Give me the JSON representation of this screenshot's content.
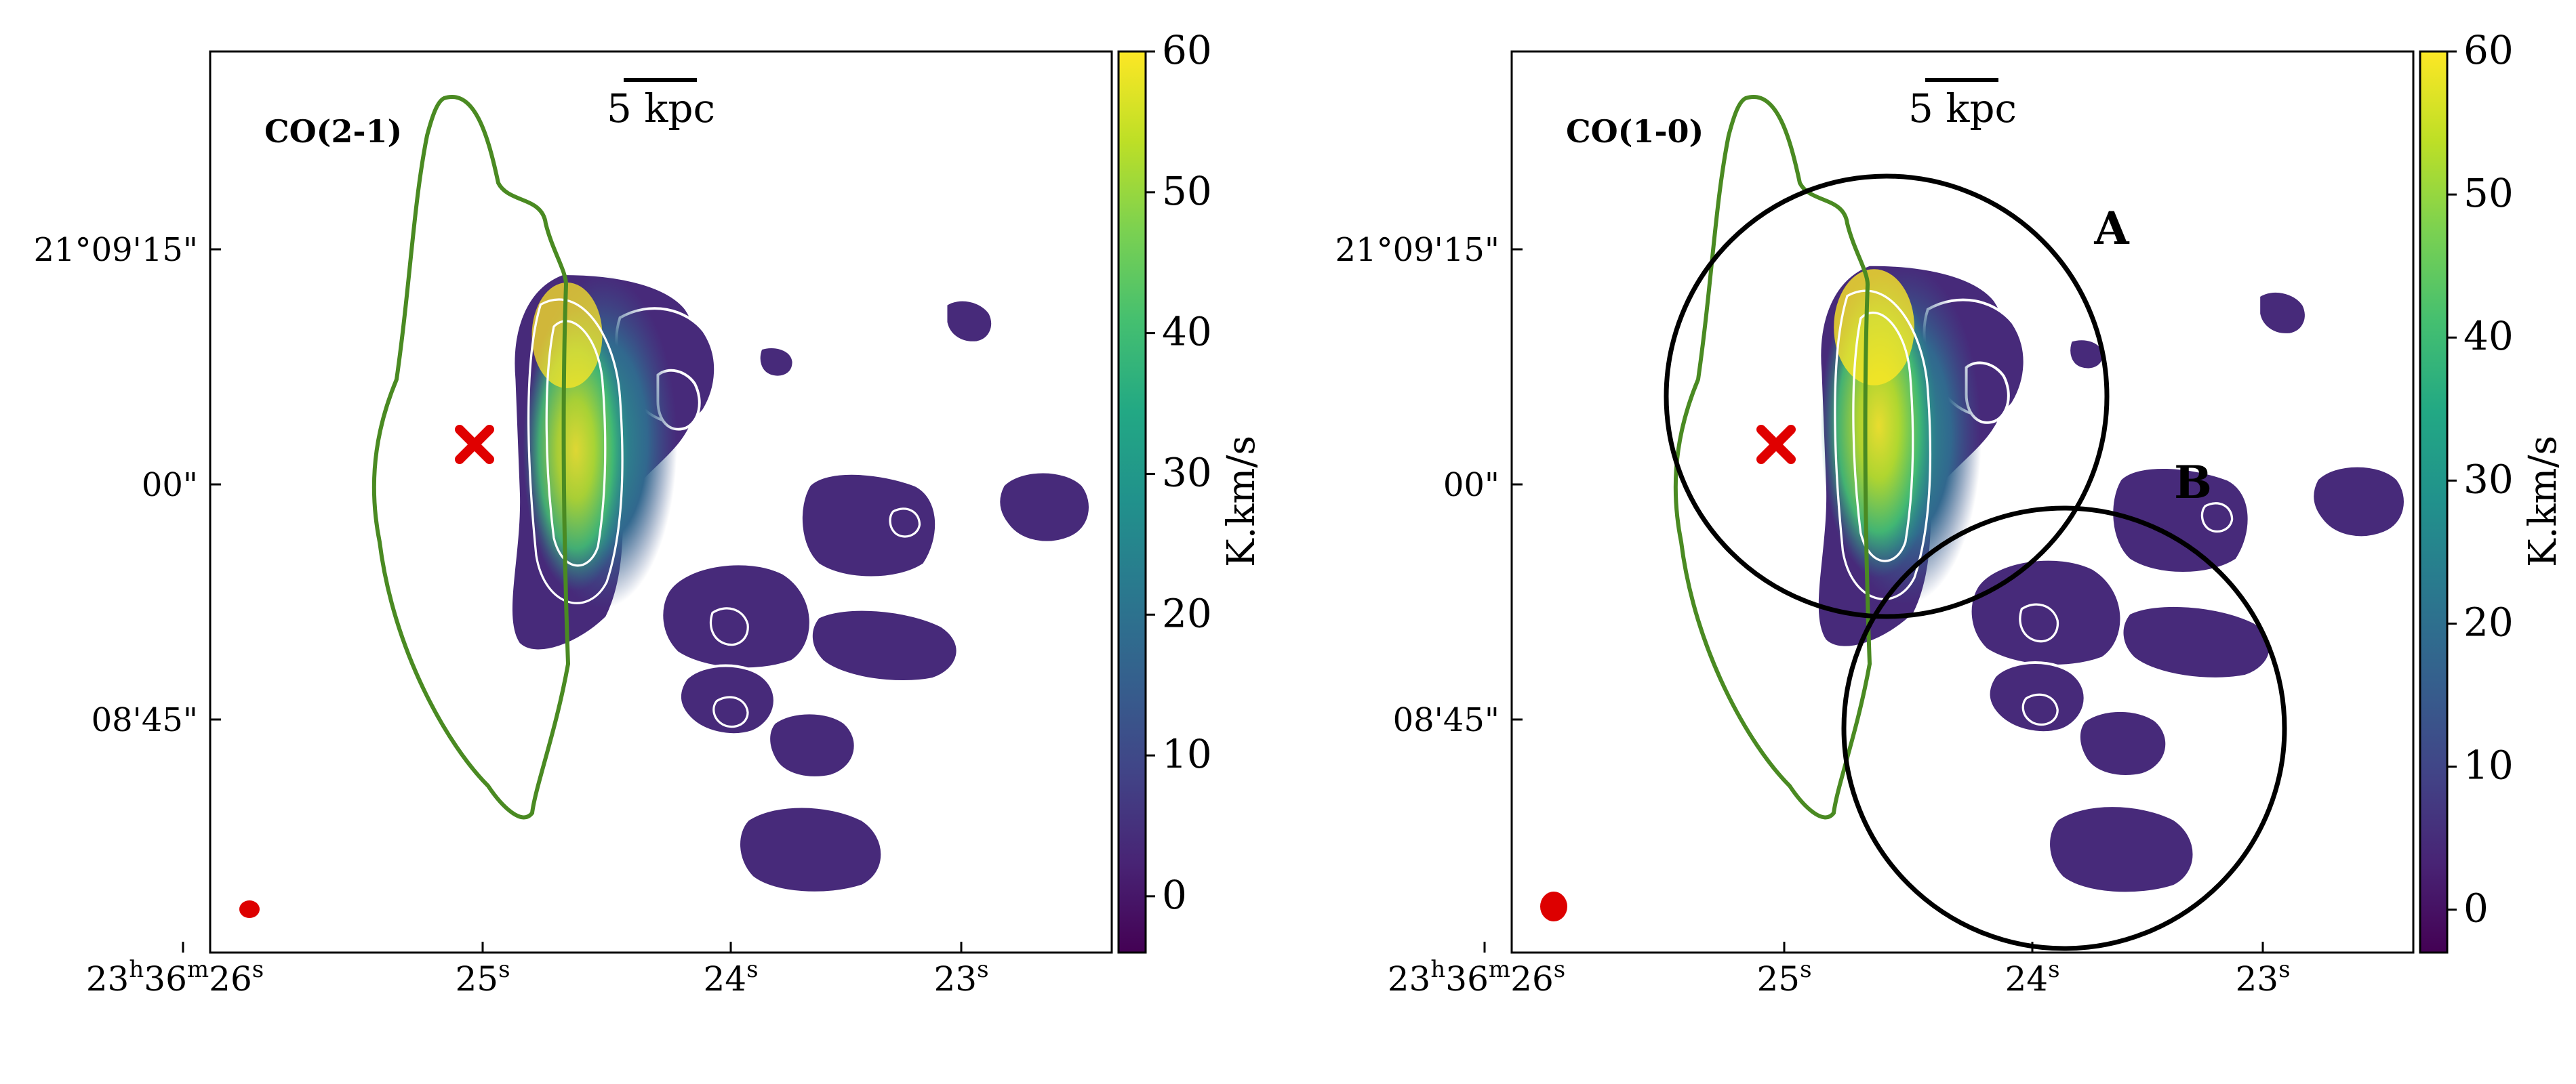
{
  "chart_data": [
    {
      "type": "heatmap",
      "title": "CO(2-1)",
      "colorbar_label": "K.km/s",
      "colorbar_ticks": [
        0,
        10,
        20,
        30,
        40,
        50,
        60
      ],
      "colorbar_range": [
        -4,
        60
      ],
      "colormap": "viridis",
      "scalebar_label": "5 kpc",
      "ra_ticks": [
        {
          "label": "23h36m26s",
          "h": "23",
          "m": "36",
          "s": "26"
        },
        {
          "label": "25s",
          "s": "25"
        },
        {
          "label": "24s",
          "s": "24"
        },
        {
          "label": "23s",
          "s": "23"
        }
      ],
      "dec_ticks": [
        "21°09'15\"",
        "00\"",
        "08'45\""
      ],
      "marker": "central source (red cross)",
      "contours": "white emission contours",
      "outline": "green outline",
      "beam": "red ellipse",
      "regions": []
    },
    {
      "type": "heatmap",
      "title": "CO(1-0)",
      "colorbar_label": "K.km/s",
      "colorbar_ticks": [
        0,
        10,
        20,
        30,
        40,
        50,
        60
      ],
      "colorbar_range": [
        -3,
        60
      ],
      "colormap": "viridis",
      "scalebar_label": "5 kpc",
      "ra_ticks": [
        {
          "label": "23h36m26s",
          "h": "23",
          "m": "36",
          "s": "26"
        },
        {
          "label": "25s",
          "s": "25"
        },
        {
          "label": "24s",
          "s": "24"
        },
        {
          "label": "23s",
          "s": "23"
        }
      ],
      "dec_ticks": [
        "21°09'15\"",
        "00\"",
        "08'45\""
      ],
      "marker": "central source (red cross)",
      "contours": "white emission contours",
      "outline": "green outline",
      "beam": "red ellipse",
      "regions": [
        "A",
        "B"
      ]
    }
  ],
  "colors": {
    "outline": "#4a8a22",
    "marker": "#e00000",
    "beam": "#dd0000",
    "contour": "#ffffff",
    "frame": "#000000"
  }
}
